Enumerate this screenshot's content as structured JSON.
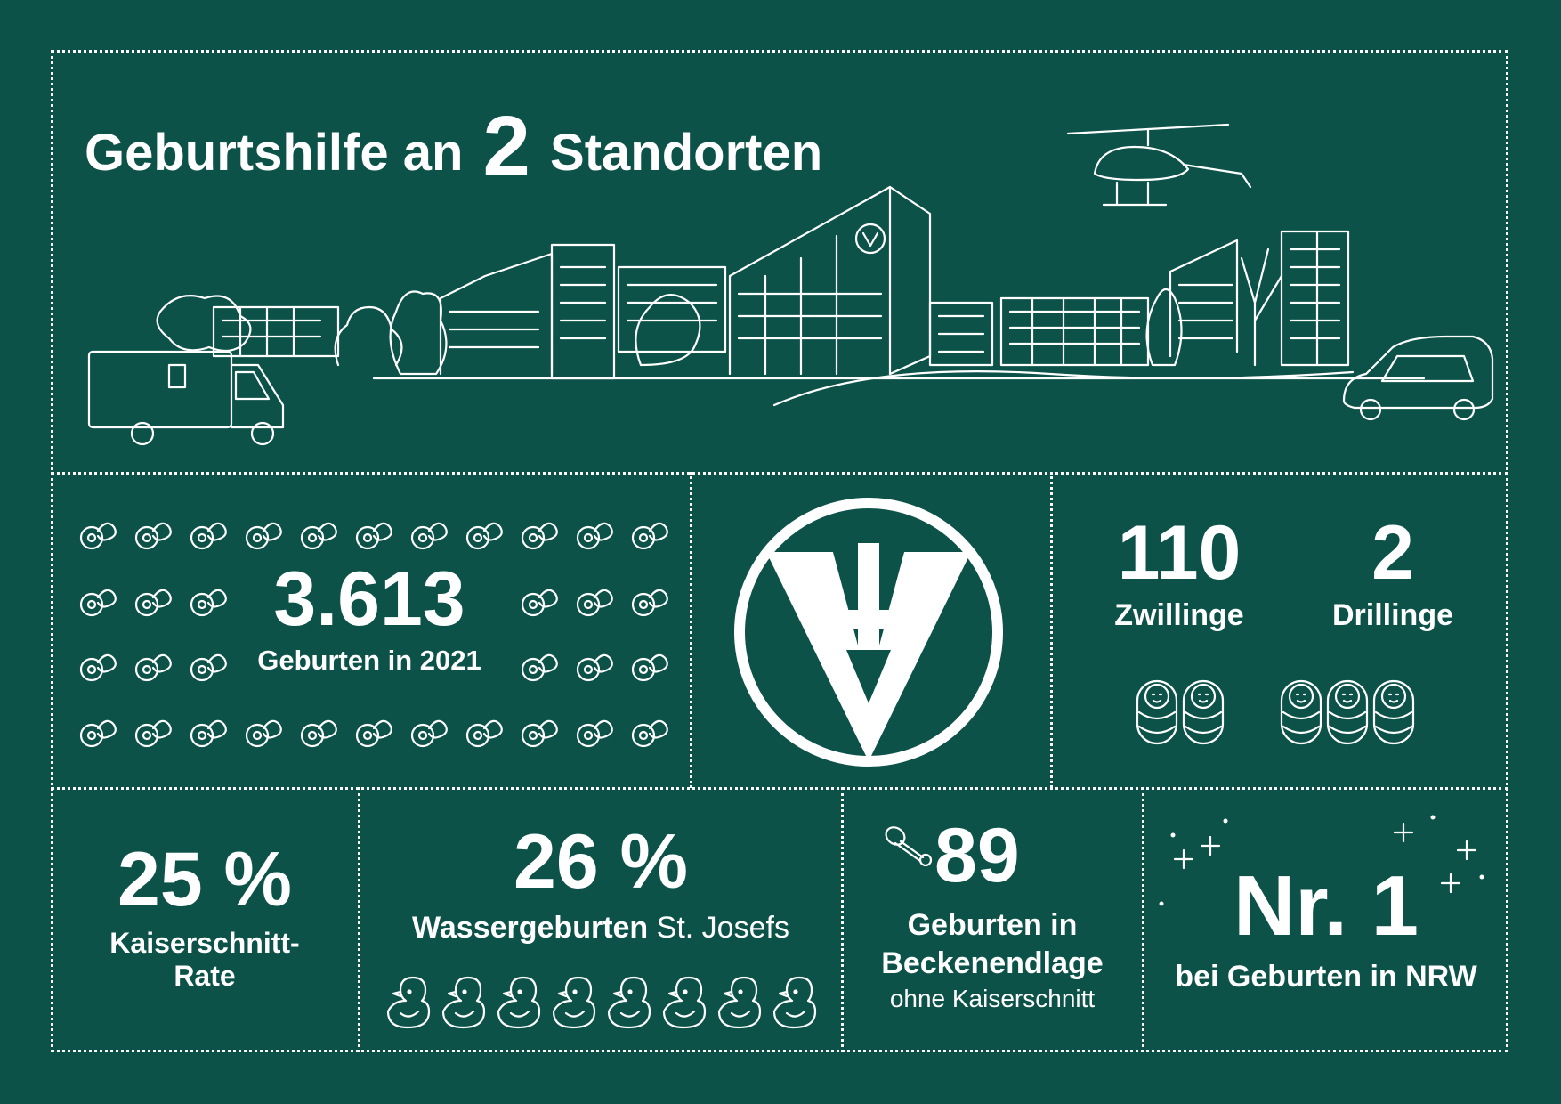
{
  "header": {
    "title_prefix": "Geburtshilfe an",
    "title_number": "2",
    "title_suffix": "Standorten"
  },
  "births": {
    "number": "3.613",
    "label": "Geburten in 2021",
    "icon": "pacifier-icon"
  },
  "logo": {
    "icon": "vv-cross-logo"
  },
  "multiples": {
    "twins": {
      "number": "110",
      "label": "Zwillinge",
      "icon": "swaddled-baby-icon"
    },
    "triplets": {
      "number": "2",
      "label": "Drillinge",
      "icon": "swaddled-baby-icon"
    }
  },
  "caesarean": {
    "value": "25 %",
    "label_line1": "Kaiserschnitt-",
    "label_line2": "Rate"
  },
  "water_births": {
    "value": "26 %",
    "label_bold": "Wassergeburten",
    "label_regular": "St. Josefs",
    "icon": "rubber-duck-icon"
  },
  "breech": {
    "value": "89",
    "line1": "Geburten in",
    "line2": "Beckenendlage",
    "line3": "ohne Kaiserschnitt",
    "icon": "safety-pin-icon"
  },
  "ranking": {
    "value": "Nr. 1",
    "label": "bei Geburten in NRW",
    "icon": "sparkle-icon"
  },
  "colors": {
    "background": "#0c5249",
    "foreground": "#ffffff"
  }
}
